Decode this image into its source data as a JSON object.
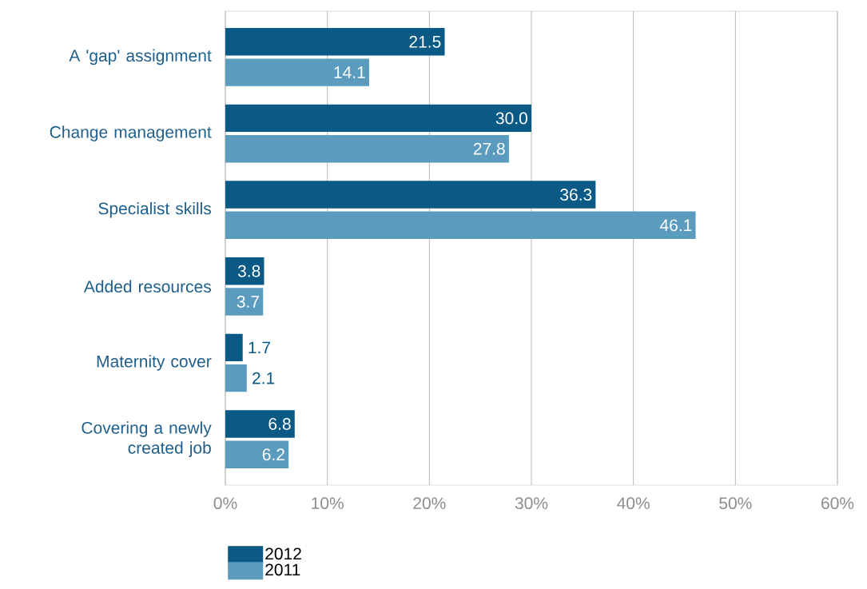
{
  "chart_data": {
    "type": "bar",
    "orientation": "horizontal",
    "categories": [
      "A 'gap' assignment",
      "Change management",
      "Specialist skills",
      "Added resources",
      "Maternity cover",
      "Covering a newly created job"
    ],
    "series": [
      {
        "name": "2012",
        "color": "#0b5a85",
        "values": [
          21.5,
          30.0,
          36.3,
          3.8,
          1.7,
          6.8
        ],
        "value_labels": [
          "21.5",
          "30.0",
          "36.3",
          "3.8",
          "1.7",
          "6.8"
        ]
      },
      {
        "name": "2011",
        "color": "#5b9bbd",
        "values": [
          14.1,
          27.8,
          46.1,
          3.7,
          2.1,
          6.2
        ],
        "value_labels": [
          "14.1",
          "27.8",
          "46.1",
          "3.7",
          "2.1",
          "6.2"
        ]
      }
    ],
    "xlim": [
      0,
      60
    ],
    "xticks": [
      {
        "value": 0,
        "label": "0%"
      },
      {
        "value": 10,
        "label": "10%"
      },
      {
        "value": 20,
        "label": "20%"
      },
      {
        "value": 30,
        "label": "30%"
      },
      {
        "value": 40,
        "label": "40%"
      },
      {
        "value": 50,
        "label": "50%"
      },
      {
        "value": 60,
        "label": "60%"
      }
    ],
    "grid": "x",
    "legend": "bottom left"
  }
}
